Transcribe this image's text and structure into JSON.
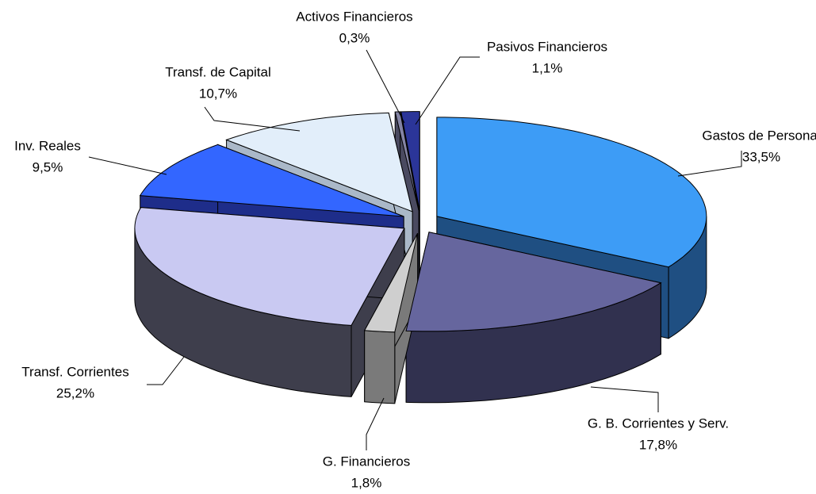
{
  "chart_data": {
    "type": "pie",
    "categories": [
      "Gastos de Personal",
      "G. B. Corrientes y Serv.",
      "G. Financieros",
      "Transf. Corrientes",
      "Inv. Reales",
      "Transf. de Capital",
      "Activos Financieros",
      "Pasivos Financieros"
    ],
    "values": [
      33.5,
      17.8,
      1.8,
      25.2,
      9.5,
      10.7,
      0.3,
      1.1
    ],
    "value_labels": [
      "33,5%",
      "17,8%",
      "1,8%",
      "25,2%",
      "9,5%",
      "10,7%",
      "0,3%",
      "1,1%"
    ],
    "colors": [
      "#3d9cf6",
      "#66669e",
      "#cfcfcf",
      "#c9c9f2",
      "#3366ff",
      "#e2eefa",
      "#8484a4",
      "#2b3599"
    ],
    "side_colors": [
      "#1f4f82",
      "#31314f",
      "#7a7a7a",
      "#3e3e4c",
      "#1e2d8a",
      "#aab8c8",
      "#4a4a60",
      "#161c55"
    ]
  }
}
